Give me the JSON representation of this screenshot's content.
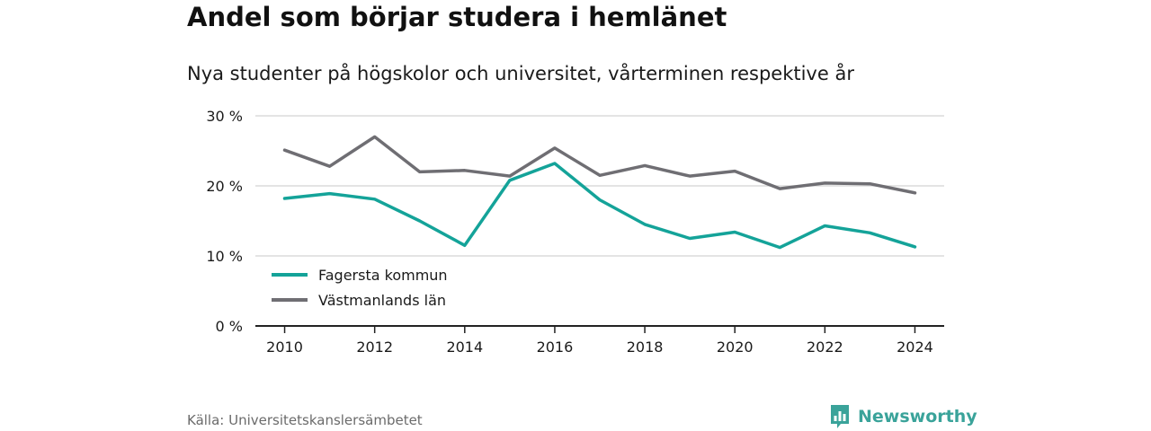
{
  "title": "Andel som börjar studera i hemlänet",
  "subtitle": "Nya studenter på högskolor och universitet, vårterminen respektive år",
  "source": "Källa: Universitetskanslersämbetet",
  "brand": {
    "name": "Newsworthy",
    "icon": "newsworthy-logo-icon",
    "color": "#3aa39a"
  },
  "chart_data": {
    "type": "line",
    "x": [
      2010,
      2011,
      2012,
      2013,
      2014,
      2015,
      2016,
      2017,
      2018,
      2019,
      2020,
      2021,
      2022,
      2023,
      2024
    ],
    "x_ticks": [
      2010,
      2012,
      2014,
      2016,
      2018,
      2020,
      2022,
      2024
    ],
    "y_ticks": [
      0,
      10,
      20,
      30
    ],
    "y_tick_suffix": " %",
    "ylim": [
      0,
      30
    ],
    "xlim": [
      2009.35,
      2024.65
    ],
    "grid": true,
    "legend_position": "bottom-left",
    "series": [
      {
        "name": "Fagersta kommun",
        "color": "#14a399",
        "values": [
          18.2,
          18.9,
          18.1,
          15.0,
          11.5,
          20.8,
          23.2,
          18.0,
          14.5,
          12.5,
          13.4,
          11.2,
          14.3,
          13.3,
          11.3
        ]
      },
      {
        "name": "Västmanlands län",
        "color": "#6f6e73",
        "values": [
          25.1,
          22.8,
          27.0,
          22.0,
          22.2,
          21.4,
          25.4,
          21.5,
          22.9,
          21.4,
          22.1,
          19.6,
          20.4,
          20.3,
          19.0
        ]
      }
    ]
  }
}
